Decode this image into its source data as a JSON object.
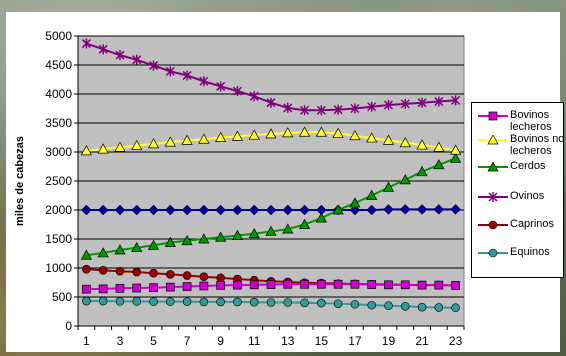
{
  "chart_data": {
    "type": "line",
    "ylabel": "miles de cabezas",
    "xlabel": "",
    "title": "",
    "ylim": [
      0,
      5000
    ],
    "yticks": [
      0,
      500,
      1000,
      1500,
      2000,
      2500,
      3000,
      3500,
      4000,
      4500,
      5000
    ],
    "x": [
      1,
      2,
      3,
      4,
      5,
      6,
      7,
      8,
      9,
      10,
      11,
      12,
      13,
      14,
      15,
      16,
      17,
      18,
      19,
      20,
      21,
      22,
      23
    ],
    "xtick_labels": [
      "1",
      "3",
      "5",
      "7",
      "9",
      "11",
      "13",
      "15",
      "17",
      "19",
      "21",
      "23"
    ],
    "grid": "horizontal",
    "legend_position": "right",
    "background_color": "#c0c0c0",
    "series": [
      {
        "name": "Bovinos lecheros",
        "color": "#cc00cc",
        "marker": "square",
        "values": [
          635,
          640,
          650,
          655,
          660,
          670,
          680,
          690,
          700,
          705,
          710,
          715,
          720,
          720,
          720,
          720,
          720,
          715,
          710,
          710,
          705,
          705,
          700
        ]
      },
      {
        "name": "Bovinos no lecheros",
        "color": "#ffff33",
        "marker": "triangle",
        "values": [
          3020,
          3050,
          3080,
          3110,
          3140,
          3170,
          3200,
          3220,
          3250,
          3270,
          3290,
          3310,
          3330,
          3340,
          3340,
          3320,
          3280,
          3240,
          3200,
          3160,
          3120,
          3080,
          3030
        ]
      },
      {
        "name": "Cerdos",
        "color": "#009900",
        "marker": "triangle",
        "values": [
          1220,
          1260,
          1310,
          1350,
          1390,
          1440,
          1470,
          1500,
          1530,
          1560,
          1590,
          1630,
          1670,
          1750,
          1860,
          2000,
          2120,
          2250,
          2390,
          2520,
          2660,
          2780,
          2890
        ]
      },
      {
        "name": "Ovinos",
        "color": "#800080",
        "marker": "star",
        "values": [
          4870,
          4770,
          4670,
          4590,
          4490,
          4390,
          4320,
          4220,
          4130,
          4050,
          3960,
          3850,
          3760,
          3720,
          3720,
          3730,
          3750,
          3780,
          3810,
          3830,
          3850,
          3870,
          3890
        ]
      },
      {
        "name": "Caprinos",
        "color": "#990000",
        "marker": "circle",
        "values": [
          980,
          960,
          945,
          930,
          910,
          890,
          870,
          850,
          830,
          810,
          790,
          770,
          760,
          745,
          740,
          730,
          725,
          720,
          715,
          710,
          705,
          705,
          700
        ]
      },
      {
        "name": "Equinos",
        "color": "#339999",
        "marker": "circle",
        "values": [
          430,
          430,
          425,
          425,
          420,
          420,
          420,
          415,
          415,
          415,
          410,
          405,
          405,
          400,
          395,
          385,
          375,
          360,
          350,
          340,
          325,
          320,
          315
        ]
      },
      {
        "name": "",
        "color": "#000099",
        "marker": "diamond",
        "values": [
          2000,
          2000,
          2000,
          2000,
          2000,
          2000,
          2000,
          2000,
          2000,
          2000,
          2000,
          2000,
          2000,
          2000,
          2000,
          2000,
          2000,
          2000,
          2010,
          2010,
          2010,
          2010,
          2010
        ]
      }
    ]
  }
}
